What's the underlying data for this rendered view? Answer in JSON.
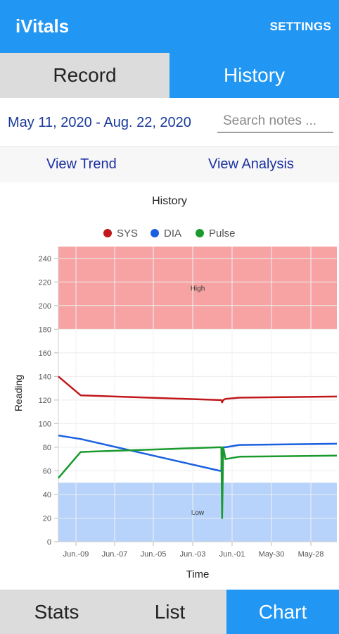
{
  "appbar": {
    "title": "iVitals",
    "settings_label": "SETTINGS"
  },
  "top_tabs": [
    {
      "label": "Record",
      "active": false
    },
    {
      "label": "History",
      "active": true
    }
  ],
  "filter": {
    "date_range": "May 11, 2020 - Aug. 22, 2020",
    "search_placeholder": "Search notes ..."
  },
  "view_links": {
    "trend": "View Trend",
    "analysis": "View Analysis"
  },
  "bottom_tabs": [
    {
      "label": "Stats",
      "active": false
    },
    {
      "label": "List",
      "active": false
    },
    {
      "label": "Chart",
      "active": true
    }
  ],
  "colors": {
    "primary": "#2196f3",
    "sys": "#c0181b",
    "dia": "#1a5fe0",
    "pulse": "#1a9a2e",
    "high_band": "#f7a3a3",
    "low_band": "#b7d3fb"
  },
  "chart_data": {
    "type": "line",
    "title": "History",
    "xlabel": "Time",
    "ylabel": "Reading",
    "ylim": [
      0,
      250
    ],
    "yticks": [
      0,
      20,
      40,
      60,
      80,
      100,
      120,
      140,
      160,
      180,
      200,
      220,
      240
    ],
    "xticks": [
      "Jun.-09",
      "Jun.-07",
      "Jun.-05",
      "Jun.-03",
      "Jun.-01",
      "May-30",
      "May-28"
    ],
    "x": [
      0,
      0.08,
      0.58,
      0.585,
      0.588,
      0.592,
      0.6,
      0.65,
      1
    ],
    "series": [
      {
        "name": "SYS",
        "values": [
          140,
          124,
          120,
          120,
          118,
          120,
          121,
          122,
          123
        ]
      },
      {
        "name": "DIA",
        "values": [
          90,
          87,
          60,
          60,
          79,
          80,
          80,
          82,
          83
        ]
      },
      {
        "name": "Pulse",
        "values": [
          54,
          76,
          80,
          80,
          20,
          80,
          70,
          72,
          73
        ]
      }
    ],
    "bands": [
      {
        "label": "High",
        "from": 180,
        "to": 250
      },
      {
        "label": "Low",
        "from": 0,
        "to": 50
      }
    ],
    "grid": true,
    "legend": "top-center"
  }
}
